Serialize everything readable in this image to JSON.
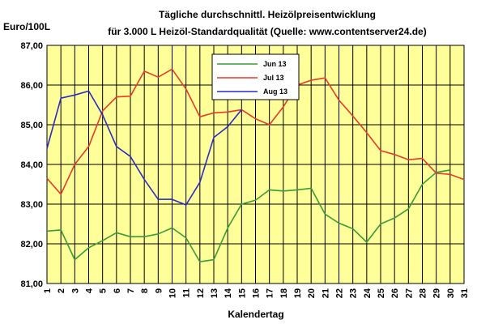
{
  "chart_data": {
    "type": "line",
    "title": "Tägliche durchschnittl. Heizölpreisentwicklung",
    "subtitle": "für 3.000 L Heizöl-Standardqualität (Quelle: www.contentserver24.de)",
    "ylabel": "Euro/100L",
    "xlabel": "Kalendertag",
    "ylim": [
      81,
      87
    ],
    "xlim": [
      1,
      31
    ],
    "y_ticks": [
      "81,00",
      "82,00",
      "83,00",
      "84,00",
      "85,00",
      "86,00",
      "87,00"
    ],
    "x_ticks": [
      "1",
      "2",
      "3",
      "4",
      "5",
      "6",
      "7",
      "8",
      "9",
      "10",
      "11",
      "12",
      "13",
      "14",
      "15",
      "16",
      "17",
      "18",
      "19",
      "20",
      "21",
      "22",
      "23",
      "24",
      "25",
      "26",
      "27",
      "28",
      "29",
      "30",
      "31"
    ],
    "grid": true,
    "legend_position": "top-center",
    "plot_background": "#ffff99",
    "series": [
      {
        "name": "Jun 13",
        "color": "#3a9a3a",
        "x": [
          1,
          2,
          3,
          4,
          5,
          6,
          7,
          8,
          9,
          10,
          11,
          12,
          13,
          14,
          15,
          16,
          17,
          18,
          19,
          20,
          21,
          22,
          23,
          24,
          25,
          26,
          27,
          28,
          29,
          30
        ],
        "values": [
          82.32,
          82.35,
          81.6,
          81.9,
          82.08,
          82.28,
          82.18,
          82.18,
          82.25,
          82.4,
          82.15,
          81.55,
          81.6,
          82.4,
          83.0,
          83.1,
          83.36,
          83.33,
          83.36,
          83.4,
          82.75,
          82.52,
          82.38,
          82.04,
          82.5,
          82.65,
          82.88,
          83.5,
          83.8,
          83.86
        ]
      },
      {
        "name": "Jul 13",
        "color": "#e83a2a",
        "x": [
          1,
          2,
          3,
          4,
          5,
          6,
          7,
          8,
          9,
          10,
          11,
          12,
          13,
          14,
          15,
          16,
          17,
          18,
          19,
          20,
          21,
          22,
          23,
          24,
          25,
          26,
          27,
          28,
          29,
          30,
          31
        ],
        "values": [
          83.65,
          83.25,
          84.0,
          84.45,
          85.35,
          85.7,
          85.72,
          86.35,
          86.2,
          86.4,
          85.9,
          85.2,
          85.3,
          85.32,
          85.38,
          85.15,
          85.0,
          85.45,
          86.0,
          86.12,
          86.18,
          85.62,
          85.22,
          84.8,
          84.35,
          84.25,
          84.12,
          84.15,
          83.78,
          83.75,
          83.62
        ]
      },
      {
        "name": "Aug 13",
        "color": "#2a2ac8",
        "x": [
          1,
          2,
          3,
          4,
          5,
          6,
          7,
          8,
          9,
          10,
          11,
          12,
          13,
          14,
          15
        ],
        "values": [
          84.4,
          85.67,
          85.75,
          85.85,
          85.25,
          84.45,
          84.2,
          83.62,
          83.12,
          83.12,
          82.98,
          83.55,
          84.68,
          84.95,
          85.38
        ]
      }
    ]
  }
}
